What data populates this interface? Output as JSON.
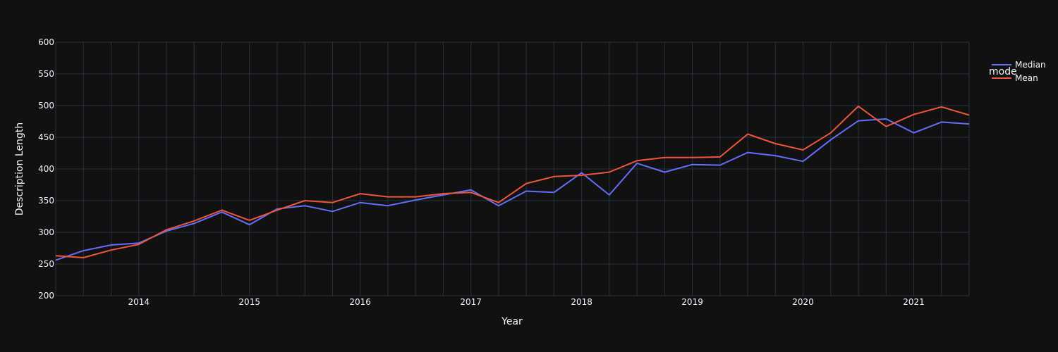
{
  "chart_data": {
    "type": "line",
    "xlabel": "Year",
    "ylabel": "Description Length",
    "ylim": [
      200,
      600
    ],
    "y_ticks": [
      200,
      250,
      300,
      350,
      400,
      450,
      500,
      550,
      600
    ],
    "x_ticks": [
      "2014",
      "2015",
      "2016",
      "2017",
      "2018",
      "2019",
      "2020",
      "2021"
    ],
    "legend_title": "mode",
    "legend_position": "top-right",
    "grid": true,
    "x": [
      "2013 Q2",
      "2013 Q3",
      "2013 Q4",
      "2014 Q1",
      "2014 Q2",
      "2014 Q3",
      "2014 Q4",
      "2015 Q1",
      "2015 Q2",
      "2015 Q3",
      "2015 Q4",
      "2016 Q1",
      "2016 Q2",
      "2016 Q3",
      "2016 Q4",
      "2017 Q1",
      "2017 Q2",
      "2017 Q3",
      "2017 Q4",
      "2018 Q1",
      "2018 Q2",
      "2018 Q3",
      "2018 Q4",
      "2019 Q1",
      "2019 Q2",
      "2019 Q3",
      "2019 Q4",
      "2020 Q1",
      "2020 Q2",
      "2020 Q3",
      "2020 Q4",
      "2021 Q1",
      "2021 Q2",
      "2021 Q3"
    ],
    "series": [
      {
        "name": "Median",
        "color": "#636efa",
        "values": [
          256,
          271,
          280,
          283,
          302,
          314,
          332,
          312,
          337,
          342,
          333,
          347,
          342,
          351,
          359,
          367,
          342,
          365,
          363,
          394,
          359,
          409,
          395,
          407,
          406,
          426,
          421,
          412,
          446,
          476,
          479,
          457,
          474,
          471
        ]
      },
      {
        "name": "Mean",
        "color": "#ef553b",
        "values": [
          263,
          260,
          272,
          281,
          304,
          318,
          335,
          319,
          335,
          350,
          347,
          361,
          356,
          356,
          361,
          363,
          347,
          377,
          388,
          390,
          395,
          413,
          418,
          418,
          419,
          455,
          440,
          430,
          457,
          499,
          467,
          486,
          498,
          485
        ]
      }
    ]
  }
}
